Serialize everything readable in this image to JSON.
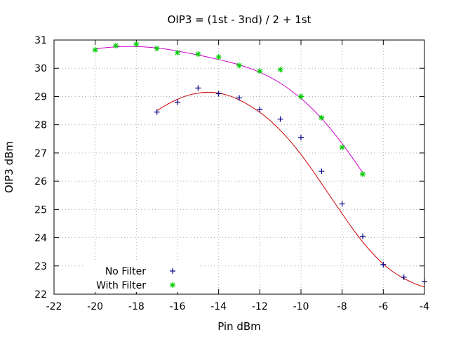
{
  "chart_data": {
    "type": "scatter",
    "title": "OIP3 = (1st - 3nd) / 2 + 1st",
    "xlabel": "Pin dBm",
    "ylabel": "OIP3 dBm",
    "xlim": [
      -22,
      -4
    ],
    "ylim": [
      22,
      31
    ],
    "xticks": [
      -22,
      -20,
      -18,
      -16,
      -14,
      -12,
      -10,
      -8,
      -6,
      -4
    ],
    "yticks": [
      22,
      23,
      24,
      25,
      26,
      27,
      28,
      29,
      30,
      31
    ],
    "grid": true,
    "legend_position": "bottom-left",
    "series": [
      {
        "name": "No Filter",
        "marker": "plus",
        "marker_color": "#00008b",
        "x": [
          -17,
          -16,
          -15,
          -14,
          -13,
          -12,
          -11,
          -10,
          -9,
          -8,
          -7,
          -6,
          -5,
          -4
        ],
        "y": [
          28.45,
          28.8,
          29.3,
          29.1,
          28.95,
          28.55,
          28.2,
          27.55,
          26.35,
          25.2,
          24.05,
          23.05,
          22.6,
          22.45
        ],
        "fit_color": "#cc0000",
        "fit_x": [
          -17,
          -16.5,
          -16,
          -15.5,
          -15,
          -14.5,
          -14,
          -13.5,
          -13,
          -12.5,
          -12,
          -11.5,
          -11,
          -10.5,
          -10,
          -9.5,
          -9,
          -8.5,
          -8,
          -7.5,
          -7,
          -6.5,
          -6,
          -5.5,
          -5,
          -4.5,
          -4
        ],
        "fit_y": [
          28.5,
          28.72,
          28.9,
          29.04,
          29.12,
          29.15,
          29.12,
          29.03,
          28.88,
          28.68,
          28.44,
          28.15,
          27.8,
          27.4,
          26.95,
          26.45,
          25.92,
          25.38,
          24.85,
          24.33,
          23.85,
          23.43,
          23.07,
          22.78,
          22.56,
          22.38,
          22.25
        ]
      },
      {
        "name": "With Filter",
        "marker": "star",
        "marker_color": "#00cc00",
        "x": [
          -20,
          -19,
          -18,
          -17,
          -16,
          -15,
          -14,
          -13,
          -12,
          -11,
          -10,
          -9,
          -8,
          -7
        ],
        "y": [
          30.65,
          30.8,
          30.85,
          30.7,
          30.55,
          30.5,
          30.4,
          30.1,
          29.9,
          29.95,
          29.0,
          28.25,
          27.2,
          26.25
        ],
        "fit_color": "#cc00cc",
        "fit_x": [
          -20,
          -19.5,
          -19,
          -18.5,
          -18,
          -17.5,
          -17,
          -16.5,
          -16,
          -15.5,
          -15,
          -14.5,
          -14,
          -13.5,
          -13,
          -12.5,
          -12,
          -11.5,
          -11,
          -10.5,
          -10,
          -9.5,
          -9,
          -8.5,
          -8,
          -7.5,
          -7
        ],
        "fit_y": [
          30.68,
          30.73,
          30.76,
          30.77,
          30.77,
          30.75,
          30.72,
          30.67,
          30.61,
          30.54,
          30.47,
          30.39,
          30.31,
          30.22,
          30.12,
          30.0,
          29.86,
          29.68,
          29.47,
          29.22,
          28.93,
          28.6,
          28.22,
          27.8,
          27.33,
          26.83,
          26.3
        ]
      }
    ]
  }
}
